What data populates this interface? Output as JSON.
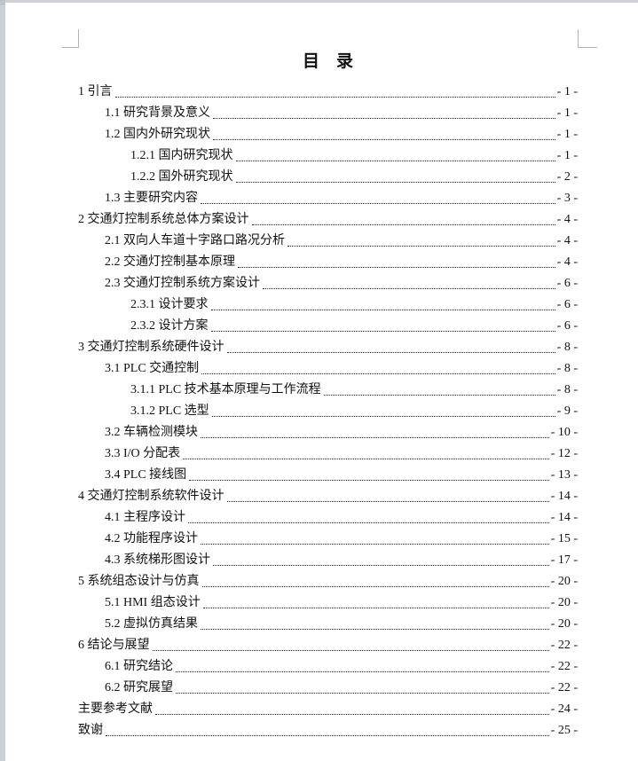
{
  "toc": {
    "title": "目　录",
    "entries": [
      {
        "label": "1 引言",
        "page": "- 1 -",
        "level": 0
      },
      {
        "label": "1.1 研究背景及意义",
        "page": "- 1 -",
        "level": 1
      },
      {
        "label": "1.2 国内外研究现状",
        "page": "- 1 -",
        "level": 1
      },
      {
        "label": "1.2.1 国内研究现状",
        "page": "- 1 -",
        "level": 2
      },
      {
        "label": "1.2.2 国外研究现状",
        "page": "- 2 -",
        "level": 2
      },
      {
        "label": "1.3 主要研究内容",
        "page": "- 3 -",
        "level": 1
      },
      {
        "label": "2 交通灯控制系统总体方案设计",
        "page": "- 4 -",
        "level": 0
      },
      {
        "label": "2.1 双向人车道十字路口路况分析",
        "page": "- 4 -",
        "level": 1
      },
      {
        "label": "2.2 交通灯控制基本原理",
        "page": "- 4 -",
        "level": 1
      },
      {
        "label": "2.3 交通灯控制系统方案设计",
        "page": "- 6 -",
        "level": 1
      },
      {
        "label": "2.3.1 设计要求",
        "page": "- 6 -",
        "level": 2
      },
      {
        "label": "2.3.2 设计方案",
        "page": "- 6 -",
        "level": 2
      },
      {
        "label": "3 交通灯控制系统硬件设计",
        "page": "- 8 -",
        "level": 0
      },
      {
        "label": "3.1 PLC 交通控制",
        "page": "- 8 -",
        "level": 1
      },
      {
        "label": "3.1.1 PLC 技术基本原理与工作流程",
        "page": "- 8 -",
        "level": 2
      },
      {
        "label": "3.1.2 PLC 选型",
        "page": "- 9 -",
        "level": 2
      },
      {
        "label": "3.2 车辆检测模块",
        "page": "- 10 -",
        "level": 1
      },
      {
        "label": "3.3 I/O 分配表",
        "page": "- 12 -",
        "level": 1
      },
      {
        "label": "3.4 PLC 接线图",
        "page": "- 13 -",
        "level": 1
      },
      {
        "label": "4 交通灯控制系统软件设计",
        "page": "- 14 -",
        "level": 0
      },
      {
        "label": "4.1 主程序设计",
        "page": "- 14 -",
        "level": 1
      },
      {
        "label": "4.2 功能程序设计",
        "page": "- 15 -",
        "level": 1
      },
      {
        "label": "4.3 系统梯形图设计",
        "page": "- 17 -",
        "level": 1
      },
      {
        "label": "5 系统组态设计与仿真",
        "page": "- 20 -",
        "level": 0
      },
      {
        "label": "5.1 HMI 组态设计",
        "page": "- 20 -",
        "level": 1
      },
      {
        "label": "5.2 虚拟仿真结果",
        "page": "- 20 -",
        "level": 1
      },
      {
        "label": "6 结论与展望",
        "page": "- 22 -",
        "level": 0
      },
      {
        "label": "6.1 研究结论",
        "page": "- 22 -",
        "level": 1
      },
      {
        "label": "6.2 研究展望",
        "page": "- 22 -",
        "level": 1
      },
      {
        "label": "主要参考文献",
        "page": "- 24 -",
        "level": 0
      },
      {
        "label": "致谢",
        "page": "- 25 -",
        "level": 0
      }
    ]
  },
  "colors": {
    "text": "#111111",
    "leader": "#2b2b2b",
    "crop_mark": "#b4b4b4",
    "frame": "#ccd1d9",
    "page_background": "#ffffff"
  }
}
